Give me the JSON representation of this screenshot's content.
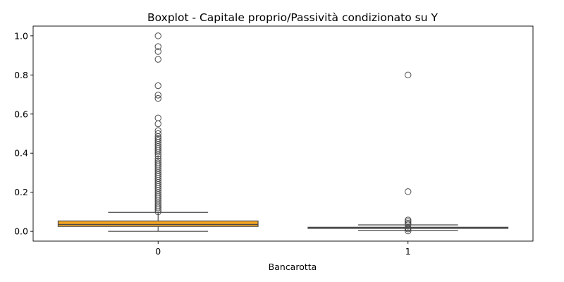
{
  "chart_data": {
    "type": "boxplot",
    "title": "Boxplot - Capitale proprio/Passività condizionato su Y",
    "xlabel": "Bancarotta",
    "ylabel": "",
    "ylim": [
      -0.05,
      1.05
    ],
    "yticks": [
      0.0,
      0.2,
      0.4,
      0.6,
      0.8,
      1.0
    ],
    "ytick_labels": [
      "0.0",
      "0.2",
      "0.4",
      "0.6",
      "0.8",
      "1.0"
    ],
    "categories": [
      "0",
      "1"
    ],
    "grid": false,
    "boxes": [
      {
        "category": "0",
        "color": "#f5a623",
        "whisker_low": 0.0,
        "q1": 0.025,
        "median": 0.035,
        "q3": 0.053,
        "whisker_high": 0.097,
        "outliers": [
          1.0,
          0.945,
          0.92,
          0.88,
          0.745,
          0.697,
          0.68,
          0.58,
          0.55,
          0.515,
          0.5,
          0.485,
          0.475,
          0.465,
          0.455,
          0.445,
          0.435,
          0.425,
          0.415,
          0.405,
          0.395,
          0.385,
          0.37,
          0.36,
          0.35,
          0.34,
          0.33,
          0.32,
          0.31,
          0.3,
          0.29,
          0.28,
          0.27,
          0.26,
          0.25,
          0.24,
          0.23,
          0.22,
          0.21,
          0.2,
          0.19,
          0.18,
          0.17,
          0.16,
          0.15,
          0.14,
          0.13,
          0.12,
          0.11,
          0.1
        ]
      },
      {
        "category": "1",
        "color": "#4a4a4a",
        "whisker_low": 0.005,
        "q1": 0.015,
        "median": 0.018,
        "q3": 0.021,
        "whisker_high": 0.033,
        "outliers": [
          0.8,
          0.203,
          0.058,
          0.05,
          0.042,
          0.035,
          0.018,
          0.012,
          0.002
        ]
      }
    ]
  }
}
